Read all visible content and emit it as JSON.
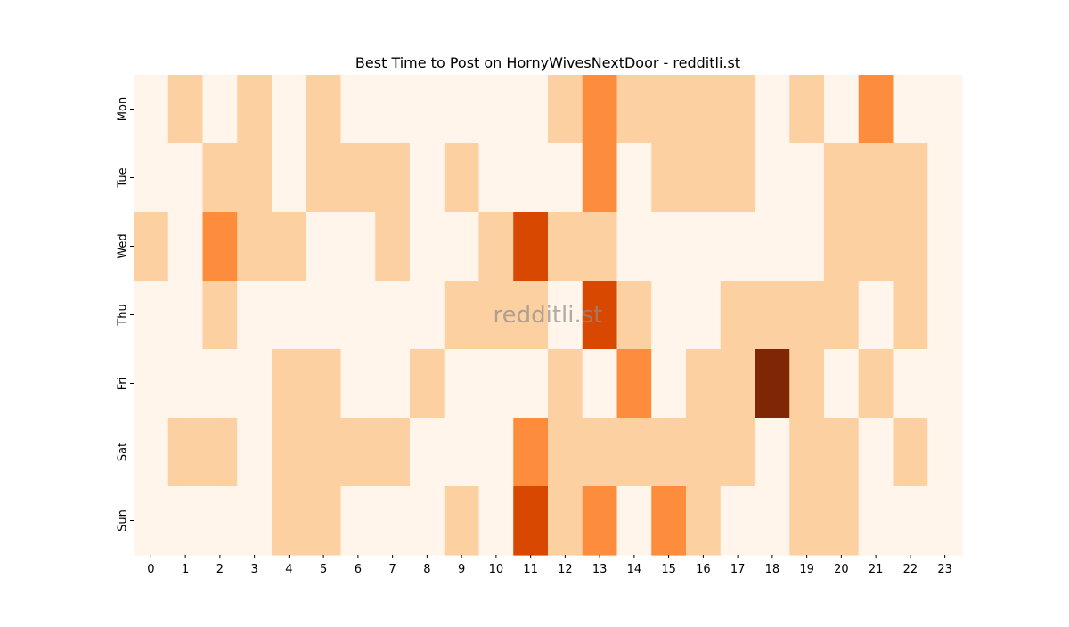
{
  "chart_data": {
    "type": "heatmap",
    "title": "Best Time to Post on HornyWivesNextDoor - redditli.st",
    "watermark": "redditli.st",
    "xlabel": "",
    "ylabel": "",
    "x_categories": [
      "0",
      "1",
      "2",
      "3",
      "4",
      "5",
      "6",
      "7",
      "8",
      "9",
      "10",
      "11",
      "12",
      "13",
      "14",
      "15",
      "16",
      "17",
      "18",
      "19",
      "20",
      "21",
      "22",
      "23"
    ],
    "y_categories": [
      "Mon",
      "Tue",
      "Wed",
      "Thu",
      "Fri",
      "Sat",
      "Sun"
    ],
    "values": [
      [
        0,
        1,
        0,
        1,
        0,
        1,
        0,
        0,
        0,
        0,
        0,
        0,
        1,
        2,
        1,
        1,
        1,
        1,
        0,
        1,
        0,
        2,
        0,
        0
      ],
      [
        0,
        0,
        1,
        1,
        0,
        1,
        1,
        1,
        0,
        1,
        0,
        0,
        0,
        2,
        0,
        1,
        1,
        1,
        0,
        0,
        1,
        1,
        1,
        0
      ],
      [
        1,
        0,
        2,
        1,
        1,
        0,
        0,
        1,
        0,
        0,
        1,
        3,
        1,
        1,
        0,
        0,
        0,
        0,
        0,
        0,
        1,
        1,
        1,
        0
      ],
      [
        0,
        0,
        1,
        0,
        0,
        0,
        0,
        0,
        0,
        1,
        1,
        1,
        0,
        3,
        1,
        0,
        0,
        1,
        1,
        1,
        1,
        0,
        1,
        0
      ],
      [
        0,
        0,
        0,
        0,
        1,
        1,
        0,
        0,
        1,
        0,
        0,
        0,
        1,
        0,
        2,
        0,
        1,
        1,
        4,
        1,
        0,
        1,
        0,
        0
      ],
      [
        0,
        1,
        1,
        0,
        1,
        1,
        1,
        1,
        0,
        0,
        0,
        2,
        1,
        1,
        1,
        1,
        1,
        1,
        0,
        1,
        1,
        0,
        1,
        0
      ],
      [
        0,
        0,
        0,
        0,
        1,
        1,
        0,
        0,
        0,
        1,
        0,
        3,
        1,
        2,
        0,
        2,
        1,
        0,
        0,
        1,
        1,
        0,
        0,
        0
      ]
    ],
    "color_scale": [
      "#fff5eb",
      "#fdd0a2",
      "#fd8d3c",
      "#d94801",
      "#7f2704"
    ],
    "grid": false,
    "legend": "none"
  }
}
